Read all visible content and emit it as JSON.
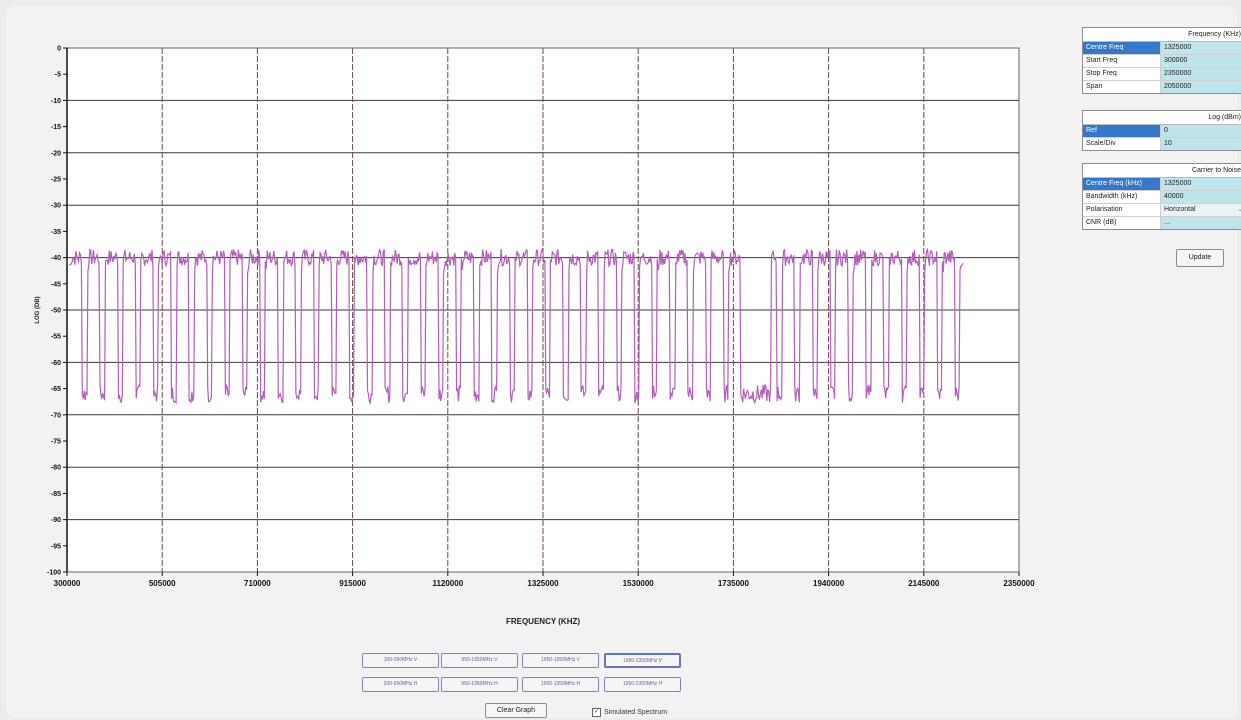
{
  "chart_data": {
    "type": "line",
    "xlabel": "FREQUENCY (KHZ)",
    "ylabel": "LOG (DB)",
    "x_ticks": [
      "300000",
      "505000",
      "710000",
      "915000",
      "1120000",
      "1325000",
      "1530000",
      "1735000",
      "1940000",
      "2145000",
      "2350000"
    ],
    "x_range": [
      300000,
      2350000
    ],
    "ylim": [
      -100,
      0
    ],
    "y_ticks": [
      0,
      -5,
      -10,
      -15,
      -20,
      -25,
      -30,
      -35,
      -40,
      -45,
      -50,
      -55,
      -60,
      -65,
      -70,
      -75,
      -80,
      -85,
      -90,
      -95,
      -100
    ],
    "grid": true,
    "series": [
      {
        "color": "#b060b8",
        "channel_width_khz": 27500,
        "channel_spacing_khz": 38360,
        "high_level_db": -40,
        "low_level_db": -66,
        "trace_range_khz": [
          305000,
          2230000
        ],
        "gap_range_khz": [
          1750000,
          1815000
        ]
      }
    ]
  },
  "frequency_panel": {
    "title": "Frequency (KHz)",
    "rows": [
      {
        "label": "Centre Freq",
        "value": "1325000"
      },
      {
        "label": "Start Freq",
        "value": "300000"
      },
      {
        "label": "Stop Freq",
        "value": "2350000"
      },
      {
        "label": "Span",
        "value": "2050000"
      }
    ]
  },
  "log_panel": {
    "title": "Log (dBm)",
    "rows": [
      {
        "label": "Ref",
        "value": "0"
      },
      {
        "label": "Scale/Div",
        "value": "10"
      }
    ]
  },
  "cn_panel": {
    "title": "Carrier to Noise",
    "rows": [
      {
        "label": "Centre Freq (kHz)",
        "value": "1325000"
      },
      {
        "label": "Bandwidth (kHz)",
        "value": "40000"
      },
      {
        "label": "Polarisation",
        "value": "Horizontal"
      },
      {
        "label": "CNR (dB)",
        "value": "..."
      }
    ]
  },
  "update_label": "Update",
  "band_buttons": [
    {
      "label": "300-950MHz V",
      "active": false
    },
    {
      "label": "950-1950MHz V",
      "active": false
    },
    {
      "label": "1950-1950MHz V",
      "active": false
    },
    {
      "label": "1950-2350MHz V",
      "active": true
    },
    {
      "label": "300-950MHz H",
      "active": false
    },
    {
      "label": "950-1950MHz H",
      "active": false
    },
    {
      "label": "1950-1950MHz H",
      "active": false
    },
    {
      "label": "1950-2350MHz H",
      "active": false
    }
  ],
  "clear_label": "Clear Graph",
  "simulated_label": "Simulated Spectrum",
  "simulated_checked": true
}
